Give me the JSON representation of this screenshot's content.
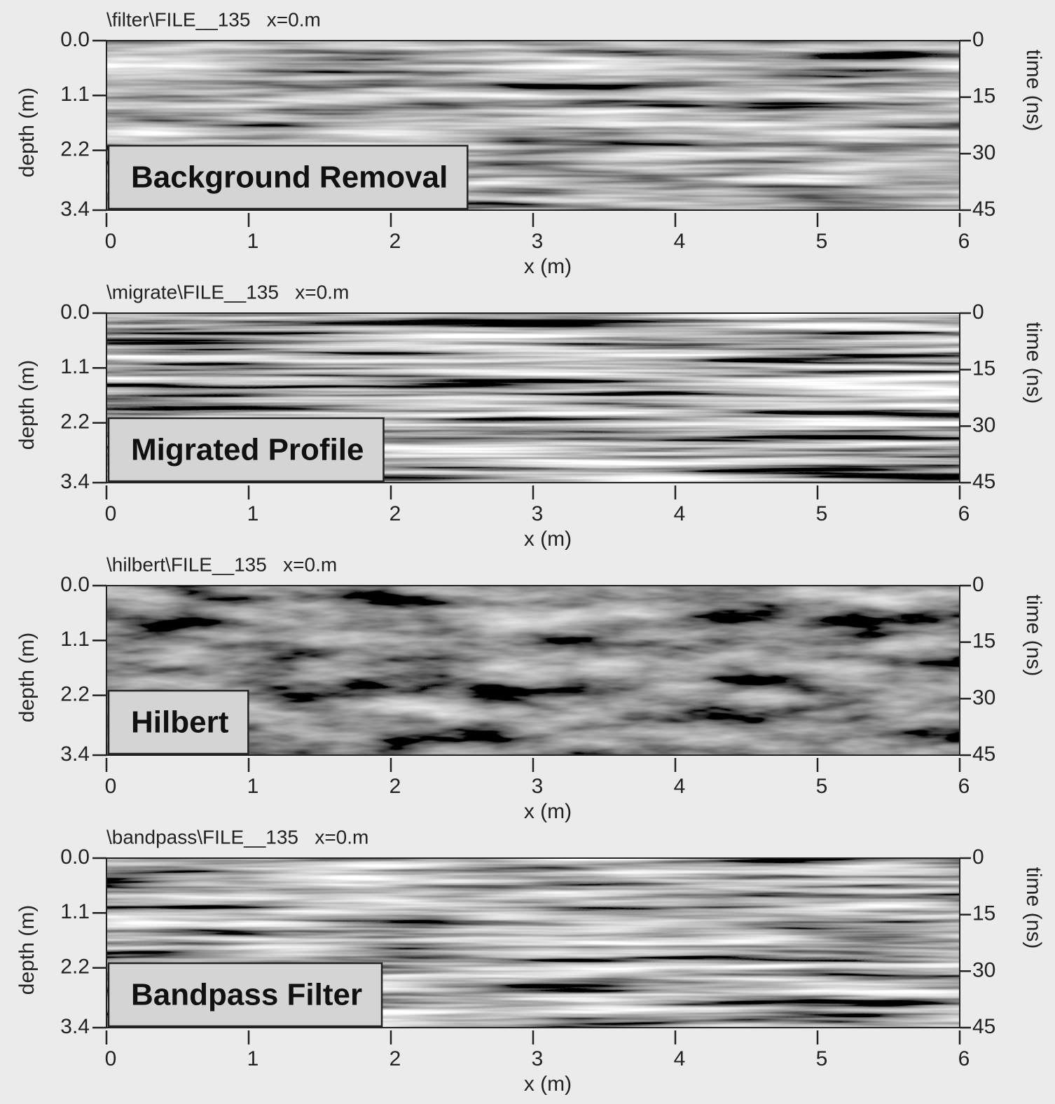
{
  "chart_data": [
    {
      "type": "radargram",
      "title": "\\filter\\FILE__135   x=0.m",
      "annotation": "Background Removal",
      "xlabel": "x (m)",
      "ylabel": "depth (m)",
      "y2label": "time (ns)",
      "xlim": [
        0,
        6
      ],
      "xticks": [
        0,
        1,
        2,
        3,
        4,
        5,
        6
      ],
      "ylim": [
        0,
        3.4
      ],
      "yticks": [
        {
          "value": 0,
          "label": "0.0"
        },
        1.1,
        2.2,
        3.4
      ],
      "y2lim": [
        0,
        45
      ],
      "y2ticks": [
        0,
        15,
        30,
        45
      ]
    },
    {
      "type": "radargram",
      "title": "\\migrate\\FILE__135   x=0.m",
      "annotation": "Migrated Profile",
      "xlabel": "x (m)",
      "ylabel": "depth (m)",
      "y2label": "time (ns)",
      "xlim": [
        0,
        6
      ],
      "xticks": [
        0,
        1,
        2,
        3,
        4,
        5,
        6
      ],
      "ylim": [
        0,
        3.4
      ],
      "yticks": [
        {
          "value": 0,
          "label": "0.0"
        },
        1.1,
        2.2,
        3.4
      ],
      "y2lim": [
        0,
        45
      ],
      "y2ticks": [
        0,
        15,
        30,
        45
      ]
    },
    {
      "type": "radargram",
      "title": "\\hilbert\\FILE__135   x=0.m",
      "annotation": "Hilbert",
      "xlabel": "x (m)",
      "ylabel": "depth (m)",
      "y2label": "time (ns)",
      "xlim": [
        0,
        6
      ],
      "xticks": [
        0,
        1,
        2,
        3,
        4,
        5,
        6
      ],
      "ylim": [
        0,
        3.4
      ],
      "yticks": [
        {
          "value": 0,
          "label": "0.0"
        },
        1.1,
        2.2,
        3.4
      ],
      "y2lim": [
        0,
        45
      ],
      "y2ticks": [
        0,
        15,
        30,
        45
      ]
    },
    {
      "type": "radargram",
      "title": "\\bandpass\\FILE__135   x=0.m",
      "annotation": "Bandpass Filter",
      "xlabel": "x (m)",
      "ylabel": "depth (m)",
      "y2label": "time (ns)",
      "xlim": [
        0,
        6
      ],
      "xticks": [
        0,
        1,
        2,
        3,
        4,
        5,
        6
      ],
      "ylim": [
        0,
        3.4
      ],
      "yticks": [
        {
          "value": 0,
          "label": "0.0"
        },
        1.1,
        2.2,
        3.4
      ],
      "y2lim": [
        0,
        45
      ],
      "y2ticks": [
        0,
        15,
        30,
        45
      ]
    }
  ]
}
